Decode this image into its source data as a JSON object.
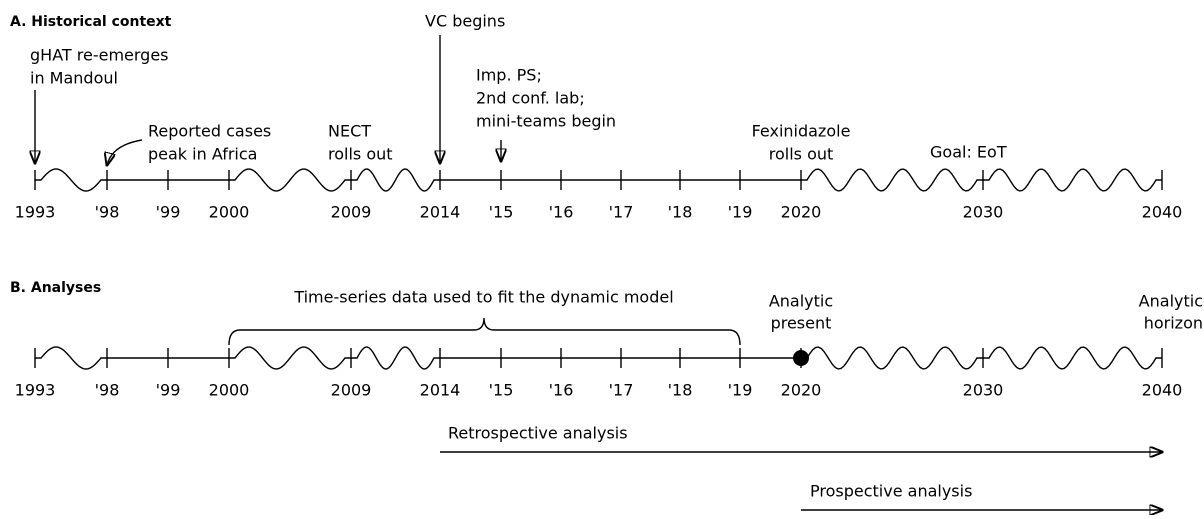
{
  "panel_a": {
    "title": "A. Historical context",
    "ticks": [
      "1993",
      "'98",
      "'99",
      "2000",
      "2009",
      "2014",
      "'15",
      "'16",
      "'17",
      "'18",
      "'19",
      "2020",
      "2030",
      "2040"
    ],
    "events": [
      {
        "lines": [
          "gHAT re-emerges",
          "in Mandoul"
        ]
      },
      {
        "lines": [
          "Reported cases",
          "peak in Africa"
        ]
      },
      {
        "lines": [
          "NECT",
          "rolls out"
        ]
      },
      {
        "lines": [
          "VC begins"
        ]
      },
      {
        "lines": [
          "Imp. PS;",
          "2nd conf. lab;",
          "mini-teams begin"
        ]
      },
      {
        "lines": [
          "Fexinidazole",
          "rolls out"
        ]
      },
      {
        "lines": [
          "Goal:  EoT"
        ]
      }
    ]
  },
  "panel_b": {
    "title": "B. Analyses",
    "ticks": [
      "1993",
      "'98",
      "'99",
      "2000",
      "2009",
      "2014",
      "'15",
      "'16",
      "'17",
      "'18",
      "'19",
      "2020",
      "2030",
      "2040"
    ],
    "brace_label": "Time-series data used to fit the dynamic model",
    "present": [
      "Analytic",
      "present"
    ],
    "horizon": [
      "Analytic",
      "horizon"
    ],
    "retrospective": "Retrospective analysis",
    "prospective": "Prospective analysis"
  }
}
